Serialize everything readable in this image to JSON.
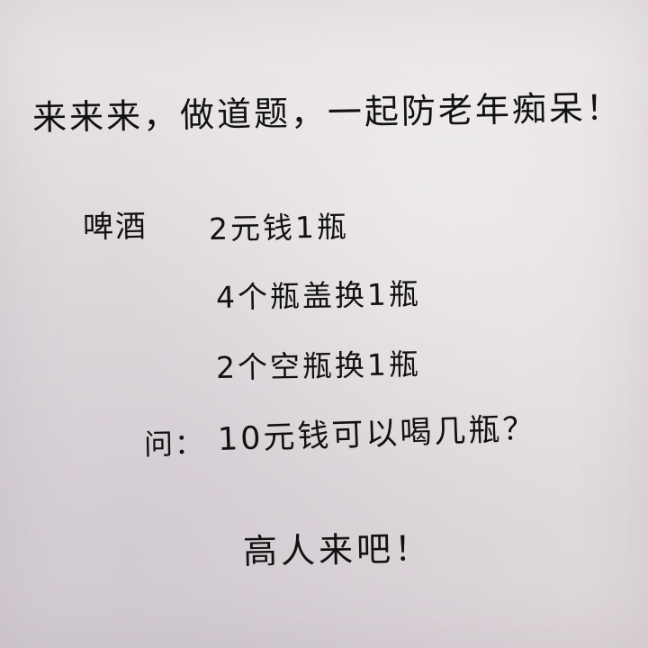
{
  "title": "来来来，做道题，一起防老年痴呆！",
  "puzzle": {
    "label": "啤酒",
    "rules": [
      "2元钱1瓶",
      "4个瓶盖换1瓶",
      "2个空瓶换1瓶"
    ],
    "question_label": "问：",
    "question": "10元钱可以喝几瓶？"
  },
  "challenge": "高人来吧！"
}
